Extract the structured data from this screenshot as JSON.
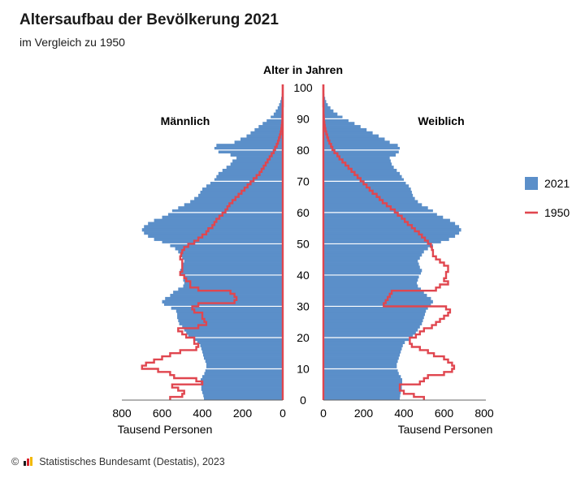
{
  "chart_data": {
    "type": "population-pyramid",
    "title": "Altersaufbau der Bevölkerung 2021",
    "subtitle": "im Vergleich zu 1950",
    "age_axis_label": "Alter in Jahren",
    "male_label": "Männlich",
    "female_label": "Weiblich",
    "xlabel": "Tausend Personen",
    "xlim": [
      0,
      800
    ],
    "x_ticks": [
      800,
      600,
      400,
      200,
      0
    ],
    "x_ticks_right": [
      0,
      200,
      400,
      600,
      800
    ],
    "age_ticks": [
      0,
      10,
      20,
      30,
      40,
      50,
      60,
      70,
      80,
      90,
      100
    ],
    "ylim": [
      0,
      100
    ],
    "legend": [
      {
        "name": "2021",
        "color": "#5b8fc9",
        "style": "bar"
      },
      {
        "name": "1950",
        "color": "#e0464f",
        "style": "line"
      }
    ],
    "series": {
      "male_2021": [
        392,
        395,
        400,
        405,
        405,
        408,
        408,
        400,
        390,
        385,
        380,
        380,
        385,
        392,
        396,
        400,
        405,
        410,
        425,
        445,
        470,
        480,
        490,
        500,
        515,
        520,
        525,
        525,
        530,
        555,
        590,
        600,
        585,
        560,
        545,
        520,
        495,
        490,
        495,
        495,
        505,
        510,
        500,
        495,
        490,
        500,
        510,
        520,
        535,
        560,
        600,
        640,
        670,
        690,
        700,
        690,
        670,
        640,
        600,
        570,
        550,
        520,
        490,
        460,
        440,
        420,
        410,
        400,
        380,
        360,
        340,
        330,
        320,
        300,
        280,
        260,
        250,
        230,
        260,
        320,
        340,
        330,
        240,
        210,
        180,
        160,
        140,
        120,
        100,
        80,
        60,
        45,
        35,
        25,
        18,
        12,
        8,
        5,
        3,
        2,
        1
      ],
      "female_2021": [
        380,
        382,
        385,
        390,
        390,
        392,
        392,
        385,
        375,
        370,
        365,
        365,
        370,
        375,
        380,
        385,
        390,
        395,
        405,
        425,
        445,
        460,
        470,
        480,
        490,
        495,
        500,
        505,
        510,
        520,
        535,
        545,
        535,
        515,
        500,
        485,
        470,
        465,
        470,
        475,
        485,
        490,
        480,
        475,
        470,
        480,
        490,
        500,
        520,
        545,
        585,
        625,
        655,
        675,
        685,
        675,
        655,
        630,
        595,
        565,
        545,
        520,
        490,
        470,
        455,
        445,
        440,
        435,
        425,
        410,
        400,
        390,
        380,
        365,
        350,
        340,
        335,
        330,
        360,
        375,
        380,
        370,
        330,
        305,
        275,
        245,
        215,
        185,
        155,
        125,
        95,
        70,
        50,
        35,
        22,
        14,
        9,
        5,
        3,
        2,
        1
      ],
      "male_1950": [
        560,
        500,
        490,
        520,
        550,
        400,
        430,
        540,
        560,
        620,
        700,
        680,
        640,
        600,
        560,
        510,
        430,
        420,
        440,
        440,
        480,
        500,
        520,
        420,
        380,
        390,
        400,
        400,
        440,
        450,
        420,
        240,
        230,
        240,
        260,
        420,
        460,
        460,
        480,
        490,
        510,
        500,
        500,
        500,
        500,
        510,
        505,
        500,
        490,
        470,
        440,
        420,
        400,
        380,
        370,
        350,
        340,
        330,
        315,
        300,
        285,
        275,
        265,
        250,
        235,
        220,
        205,
        190,
        175,
        160,
        145,
        130,
        115,
        105,
        95,
        85,
        75,
        65,
        55,
        45,
        38,
        30,
        24,
        19,
        14,
        10,
        7,
        5,
        3,
        2,
        2,
        1,
        1,
        1,
        0,
        0,
        0,
        0,
        0,
        0,
        0
      ],
      "female_1950": [
        500,
        450,
        400,
        380,
        380,
        480,
        500,
        520,
        600,
        640,
        650,
        640,
        620,
        600,
        550,
        520,
        480,
        440,
        430,
        430,
        460,
        480,
        500,
        540,
        560,
        580,
        600,
        620,
        630,
        610,
        300,
        310,
        320,
        330,
        340,
        560,
        580,
        620,
        600,
        610,
        610,
        620,
        620,
        600,
        580,
        560,
        545,
        545,
        540,
        535,
        520,
        505,
        490,
        475,
        455,
        440,
        420,
        405,
        390,
        370,
        355,
        335,
        315,
        295,
        280,
        265,
        245,
        230,
        215,
        200,
        185,
        170,
        155,
        140,
        125,
        110,
        95,
        80,
        70,
        55,
        45,
        38,
        30,
        24,
        19,
        14,
        10,
        7,
        5,
        3,
        2,
        1,
        1,
        1,
        0,
        0,
        0,
        0,
        0,
        0,
        0
      ]
    }
  },
  "footer": {
    "copyright": "©",
    "source": "Statistisches Bundesamt (Destatis), 2023"
  }
}
